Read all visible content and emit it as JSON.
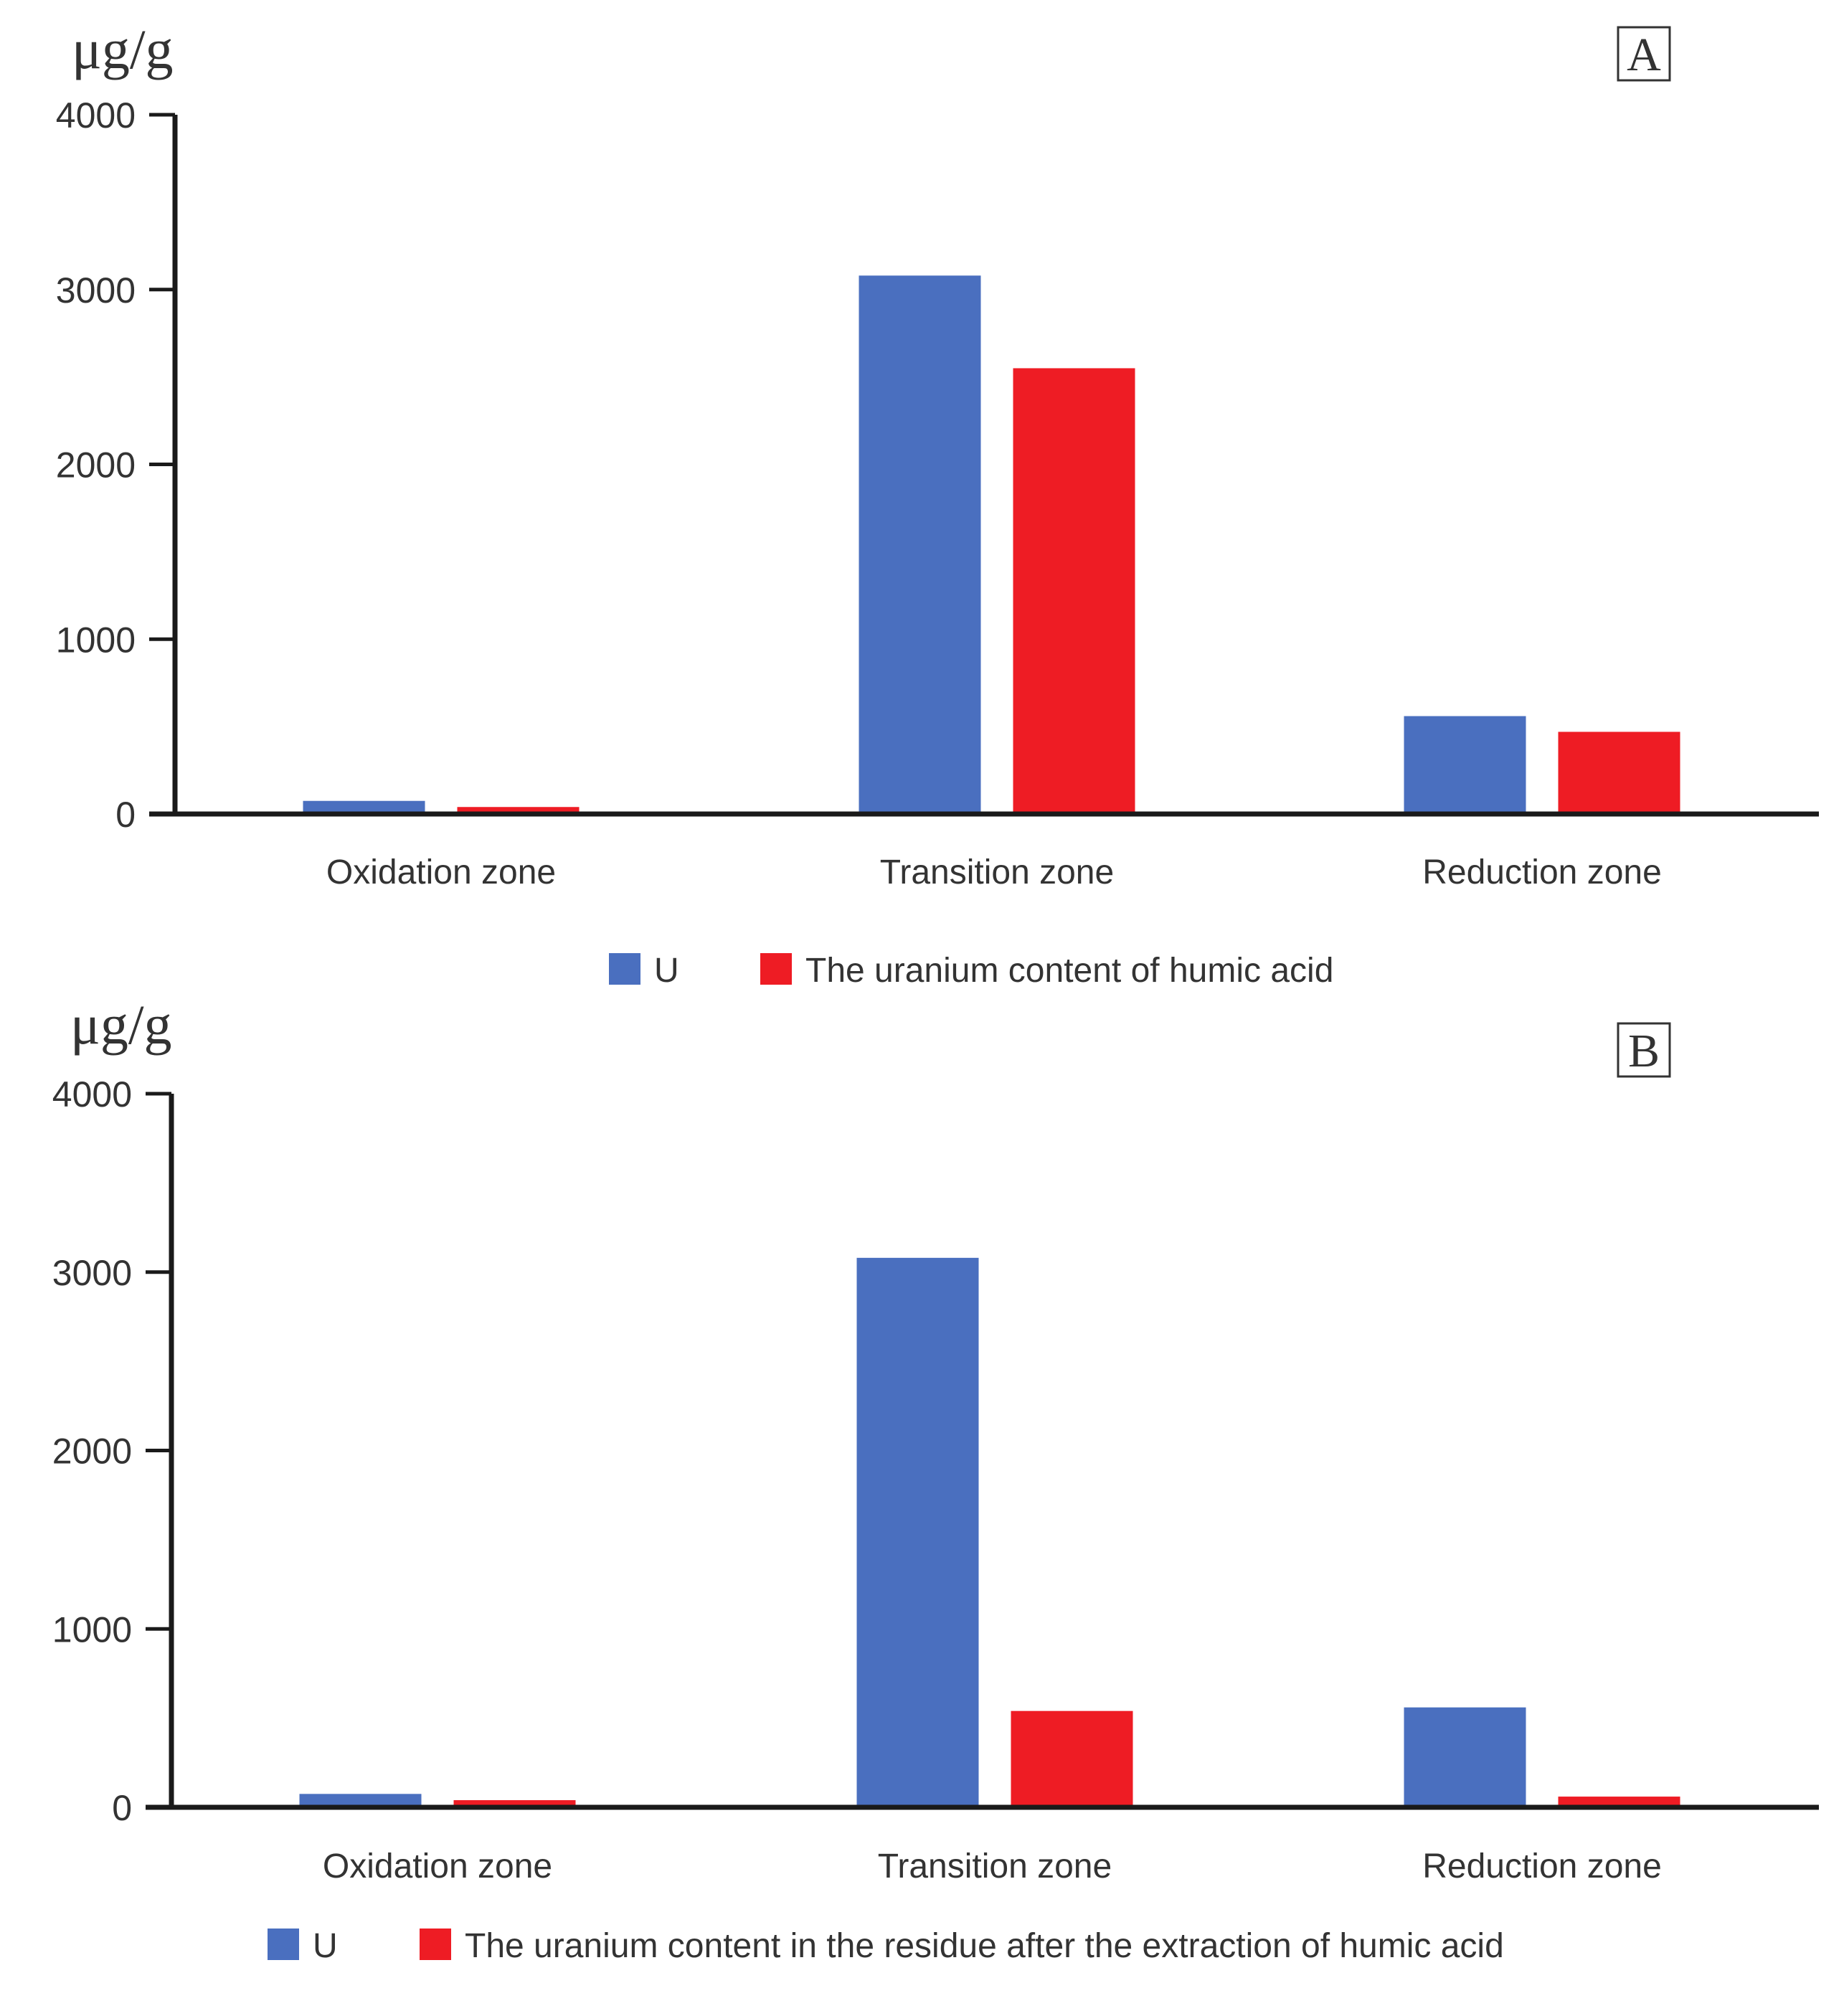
{
  "chart_data": [
    {
      "type": "bar",
      "panel_label": "A",
      "unit_label": "μg/g",
      "categories": [
        "Oxidation zone",
        "Transition zone",
        "Reduction zone"
      ],
      "series": [
        {
          "name": "U",
          "color": "#4a6fbf",
          "values": [
            75,
            3080,
            560
          ]
        },
        {
          "name": "The uranium content of humic acid",
          "color": "#ee1c24",
          "values": [
            40,
            2550,
            470
          ]
        }
      ],
      "ylim": [
        0,
        4000
      ],
      "yticks": [
        "0",
        "1000",
        "2000",
        "3000",
        "4000"
      ],
      "grid": false,
      "legend_position": "bottom"
    },
    {
      "type": "bar",
      "panel_label": "B",
      "unit_label": "μg/g",
      "categories": [
        "Oxidation zone",
        "Transition zone",
        "Reduction zone"
      ],
      "series": [
        {
          "name": "U",
          "color": "#4a6fbf",
          "values": [
            75,
            3080,
            560
          ]
        },
        {
          "name": "The uranium content in the residue after the extraction of humic acid",
          "color": "#ee1c24",
          "values": [
            40,
            540,
            60
          ]
        }
      ],
      "ylim": [
        0,
        4000
      ],
      "yticks": [
        "0",
        "1000",
        "2000",
        "3000",
        "4000"
      ],
      "grid": false,
      "legend_position": "bottom"
    }
  ]
}
